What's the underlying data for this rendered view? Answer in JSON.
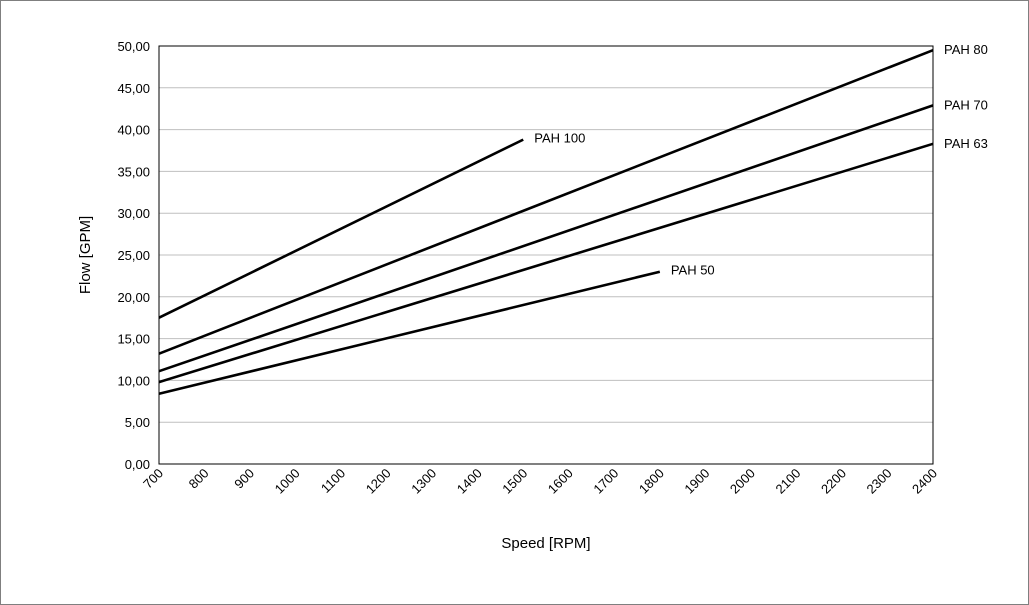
{
  "chart_data": {
    "type": "line",
    "xlabel": "Speed [RPM]",
    "ylabel": "Flow [GPM]",
    "xlim": [
      700,
      2400
    ],
    "ylim": [
      0,
      50
    ],
    "x_ticks": [
      "700",
      "800",
      "900",
      "1000",
      "1100",
      "1200",
      "1300",
      "1400",
      "1500",
      "1600",
      "1700",
      "1800",
      "1900",
      "2000",
      "2100",
      "2200",
      "2300",
      "2400"
    ],
    "y_ticks": [
      "0,00",
      "5,00",
      "10,00",
      "15,00",
      "20,00",
      "25,00",
      "30,00",
      "35,00",
      "40,00",
      "45,00",
      "50,00"
    ],
    "grid": true,
    "legend": "none",
    "series": [
      {
        "name": "PAH 100",
        "x": [
          700,
          1500
        ],
        "y": [
          17.5,
          38.8
        ]
      },
      {
        "name": "PAH 80",
        "x": [
          700,
          2400
        ],
        "y": [
          13.2,
          49.5
        ]
      },
      {
        "name": "PAH 70",
        "x": [
          700,
          2400
        ],
        "y": [
          11.1,
          42.9
        ]
      },
      {
        "name": "PAH 63",
        "x": [
          700,
          2400
        ],
        "y": [
          9.8,
          38.3
        ]
      },
      {
        "name": "PAH 50",
        "x": [
          700,
          1800
        ],
        "y": [
          8.4,
          23.0
        ]
      }
    ]
  }
}
